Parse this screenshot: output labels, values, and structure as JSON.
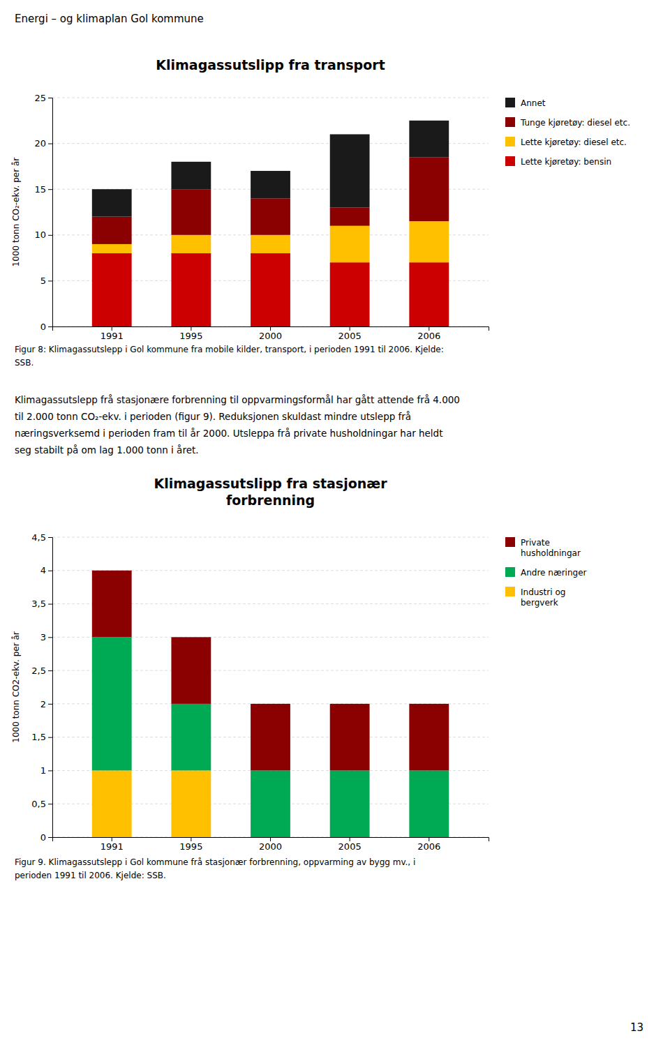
{
  "page_title": "Energi – og klimaplan Gol kommune",
  "body_text": [
    "Klimagassutslepp frå stasjonære forbrenning til oppvarmingsformål har gått attende frå 4.000",
    "til 2.000 tonn CO₂-ekv. i perioden (figur 9). Reduksjonen skuldast mindre utslepp frå",
    "næringsverksemd i perioden fram til år 2000. Utsleppa frå private husholdningar har heldt",
    "seg stabilt på om lag 1.000 tonn i året."
  ],
  "page_number": "13",
  "chart_data": [
    {
      "type": "bar",
      "stacked": true,
      "title": "Klimagassutslipp fra transport",
      "y_label": "1000 tonn CO₂-ekv. per år",
      "categories": [
        "1991",
        "1995",
        "2000",
        "2005",
        "2006"
      ],
      "series": [
        {
          "name": "Lette kjøretøy: bensin",
          "color": "#cc0000",
          "values": [
            8.0,
            8.0,
            8.0,
            7.0,
            7.0
          ]
        },
        {
          "name": "Lette kjøretøy: diesel etc.",
          "color": "#ffc000",
          "values": [
            1.0,
            2.0,
            2.0,
            4.0,
            4.5
          ]
        },
        {
          "name": "Tunge kjøretøy: diesel etc.",
          "color": "#8b0000",
          "values": [
            3.0,
            5.0,
            4.0,
            2.0,
            7.0
          ]
        },
        {
          "name": "Annet",
          "color": "#1a1a1a",
          "values": [
            3.0,
            3.0,
            3.0,
            8.0,
            4.0
          ]
        }
      ],
      "ylim": [
        0,
        25
      ],
      "yticks": [
        0,
        5,
        10,
        15,
        20,
        25
      ],
      "grid": true,
      "legend": "upper right",
      "caption": [
        "Figur 8: Klimagassutslepp i Gol kommune fra mobile kilder, transport, i perioden 1991 til 2006. Kjelde:",
        "SSB."
      ]
    },
    {
      "type": "bar",
      "stacked": true,
      "title": "Klimagassutslipp fra stasjonær\nforbrenning",
      "y_label": "1000 tonn CO2-ekv. per år",
      "categories": [
        "1991",
        "1995",
        "2000",
        "2005",
        "2006"
      ],
      "series": [
        {
          "name": "Industri og\nbergverk",
          "color": "#ffc000",
          "values": [
            1.0,
            1.0,
            0.0,
            0.0,
            0.0
          ]
        },
        {
          "name": "Andre næringer",
          "color": "#00aa55",
          "values": [
            2.0,
            1.0,
            1.0,
            1.0,
            1.0
          ]
        },
        {
          "name": "Private\nhusholdningar",
          "color": "#8b0000",
          "values": [
            1.0,
            1.0,
            1.0,
            1.0,
            1.0
          ]
        }
      ],
      "ylim": [
        0,
        4.5
      ],
      "yticks": [
        0,
        {
          "value": 0.5,
          "label": "0,5"
        },
        1,
        {
          "value": 1.5,
          "label": "1,5"
        },
        2,
        {
          "value": 2.5,
          "label": "2,5"
        },
        3,
        {
          "value": 3.5,
          "label": "3,5"
        },
        4,
        {
          "value": 4.5,
          "label": "4,5"
        }
      ],
      "grid": true,
      "legend": "upper right",
      "caption": [
        "Figur 9. Klimagassutslepp i Gol kommune frå stasjonær forbrenning, oppvarming av bygg mv., i",
        "perioden 1991 til 2006. Kjelde: SSB."
      ]
    }
  ]
}
